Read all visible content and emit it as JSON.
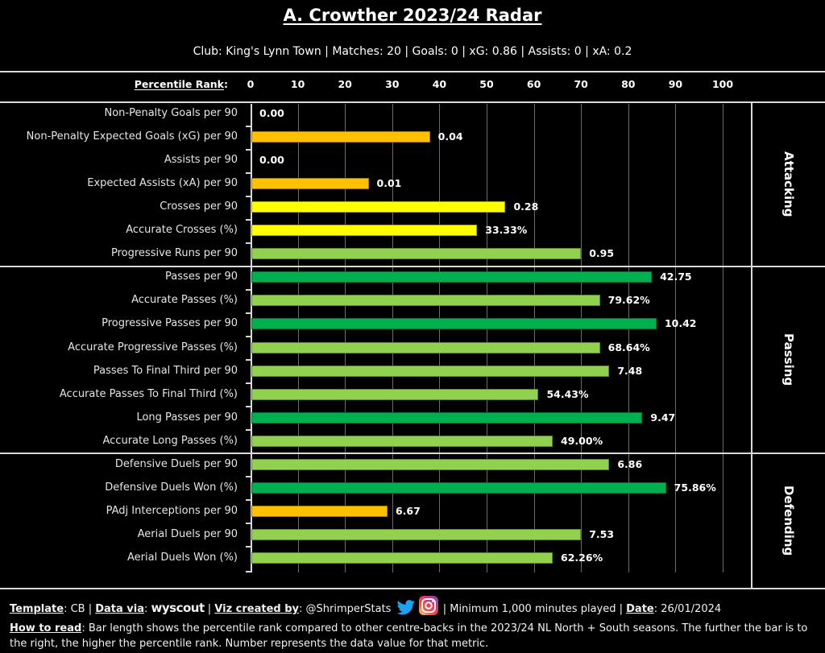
{
  "header": {
    "title": "A. Crowther 2023/24 Radar",
    "subtitle": "Club: King's Lynn Town | Matches: 20 | Goals: 0 | xG: 0.86 | Assists: 0 | xA: 0.2"
  },
  "colors": {
    "orange": "#FFC000",
    "yellow": "#FFFF00",
    "light_green": "#92D050",
    "dark_green": "#00B050",
    "background": "#000000"
  },
  "chart_data": {
    "type": "bar",
    "orientation": "horizontal",
    "xlabel": "Percentile Rank",
    "xlabel_suffix": ":",
    "xlim": [
      0,
      100
    ],
    "ticks": [
      "0",
      "10",
      "20",
      "30",
      "40",
      "50",
      "60",
      "70",
      "80",
      "90",
      "100"
    ],
    "grid": true,
    "sections": [
      {
        "name": "Attacking",
        "rows": [
          {
            "label": "Non-Penalty Goals per 90",
            "percentile": 0,
            "value": "0.00",
            "color": "orange"
          },
          {
            "label": "Non-Penalty Expected Goals (xG) per 90",
            "percentile": 38,
            "value": "0.04",
            "color": "orange"
          },
          {
            "label": "Assists per 90",
            "percentile": 0,
            "value": "0.00",
            "color": "orange"
          },
          {
            "label": "Expected Assists (xA) per 90",
            "percentile": 25,
            "value": "0.01",
            "color": "orange"
          },
          {
            "label": "Crosses per 90",
            "percentile": 54,
            "value": "0.28",
            "color": "yellow"
          },
          {
            "label": "Accurate Crosses (%)",
            "percentile": 48,
            "value": "33.33%",
            "color": "yellow"
          },
          {
            "label": "Progressive Runs per 90",
            "percentile": 70,
            "value": "0.95",
            "color": "light_green"
          }
        ]
      },
      {
        "name": "Passing",
        "rows": [
          {
            "label": "Passes per 90",
            "percentile": 85,
            "value": "42.75",
            "color": "dark_green"
          },
          {
            "label": "Accurate Passes (%)",
            "percentile": 74,
            "value": "79.62%",
            "color": "light_green"
          },
          {
            "label": "Progressive Passes per 90",
            "percentile": 86,
            "value": "10.42",
            "color": "dark_green"
          },
          {
            "label": "Accurate Progressive Passes (%)",
            "percentile": 74,
            "value": "68.64%",
            "color": "light_green"
          },
          {
            "label": "Passes To Final Third per 90",
            "percentile": 76,
            "value": "7.48",
            "color": "light_green"
          },
          {
            "label": "Accurate Passes To Final Third (%)",
            "percentile": 61,
            "value": "54.43%",
            "color": "light_green"
          },
          {
            "label": "Long Passes per 90",
            "percentile": 83,
            "value": "9.47",
            "color": "dark_green"
          },
          {
            "label": "Accurate Long Passes (%)",
            "percentile": 64,
            "value": "49.00%",
            "color": "light_green"
          }
        ]
      },
      {
        "name": "Defending",
        "rows": [
          {
            "label": "Defensive Duels per 90",
            "percentile": 76,
            "value": "6.86",
            "color": "light_green"
          },
          {
            "label": "Defensive Duels Won (%)",
            "percentile": 88,
            "value": "75.86%",
            "color": "dark_green"
          },
          {
            "label": "PAdj Interceptions per 90",
            "percentile": 29,
            "value": "6.67",
            "color": "orange"
          },
          {
            "label": "Aerial Duels per 90",
            "percentile": 70,
            "value": "7.53",
            "color": "light_green"
          },
          {
            "label": "Aerial Duels Won (%)",
            "percentile": 64,
            "value": "62.26%",
            "color": "light_green"
          }
        ]
      }
    ]
  },
  "footer": {
    "template_label": "Template",
    "template_value": ": CB | ",
    "data_via_label": "Data via",
    "data_via_sep": ": ",
    "data_source_logo": "wyscout",
    "viz_label": "Viz created by",
    "viz_value": ": @ShrimperStats",
    "social_icons": [
      "twitter-icon",
      "instagram-icon"
    ],
    "minimum_text": " | Minimum 1,000 minutes played | ",
    "date_label": "Date",
    "date_value": ": 26/01/2024",
    "how_label": "How to read",
    "how_text": ": Bar length shows the percentile rank compared to other centre-backs in the 2023/24 NL North + South seasons. The further the bar is to the right, the higher the percentile rank. Number represents the data value for that metric."
  }
}
